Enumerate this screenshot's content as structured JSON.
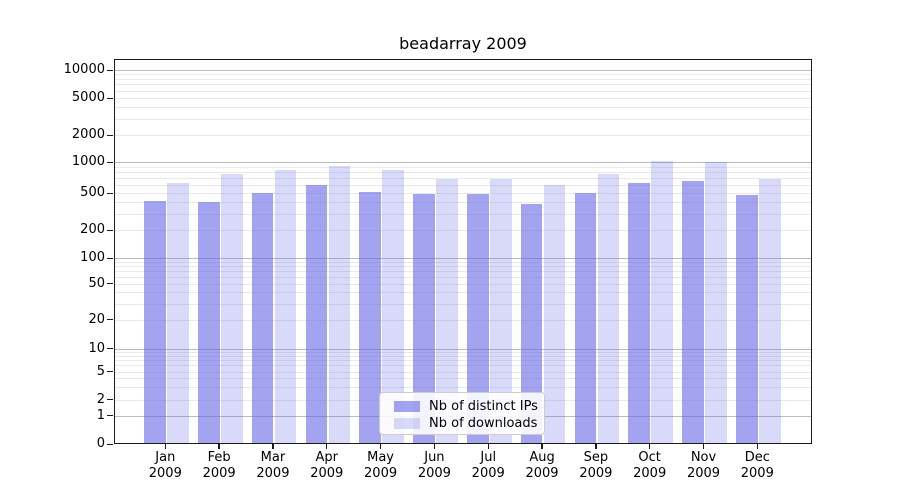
{
  "title": "beadarray 2009",
  "legend": {
    "items": [
      {
        "label": "Nb of distinct IPs",
        "color": "rgba(102,102,230,0.60)"
      },
      {
        "label": "Nb of downloads",
        "color": "rgba(102,102,230,0.25)"
      }
    ]
  },
  "y_axis": {
    "tick_labels": [
      "0",
      "1",
      "2",
      "5",
      "10",
      "20",
      "50",
      "100",
      "200",
      "500",
      "1000",
      "2000",
      "5000",
      "10000"
    ]
  },
  "x_axis": {
    "months": [
      "Jan",
      "Feb",
      "Mar",
      "Apr",
      "May",
      "Jun",
      "Jul",
      "Aug",
      "Sep",
      "Oct",
      "Nov",
      "Dec"
    ],
    "year": "2009"
  },
  "chart_data": {
    "type": "bar",
    "title": "beadarray 2009",
    "categories": [
      "Jan 2009",
      "Feb 2009",
      "Mar 2009",
      "Apr 2009",
      "May 2009",
      "Jun 2009",
      "Jul 2009",
      "Aug 2009",
      "Sep 2009",
      "Oct 2009",
      "Nov 2009",
      "Dec 2009"
    ],
    "series": [
      {
        "name": "Nb of distinct IPs",
        "values": [
          400,
          395,
          490,
          580,
          500,
          475,
          475,
          370,
          485,
          605,
          640,
          460
        ]
      },
      {
        "name": "Nb of downloads",
        "values": [
          610,
          750,
          820,
          890,
          820,
          670,
          665,
          590,
          740,
          1010,
          985,
          665
        ]
      }
    ],
    "xlabel": "",
    "ylabel": "",
    "yscale": "symlog",
    "y_ticks": [
      0,
      1,
      2,
      5,
      10,
      20,
      50,
      100,
      200,
      500,
      1000,
      2000,
      5000,
      10000
    ],
    "ylim": [
      0,
      13000
    ],
    "grid": "horizontal",
    "legend_position": "lower center"
  }
}
